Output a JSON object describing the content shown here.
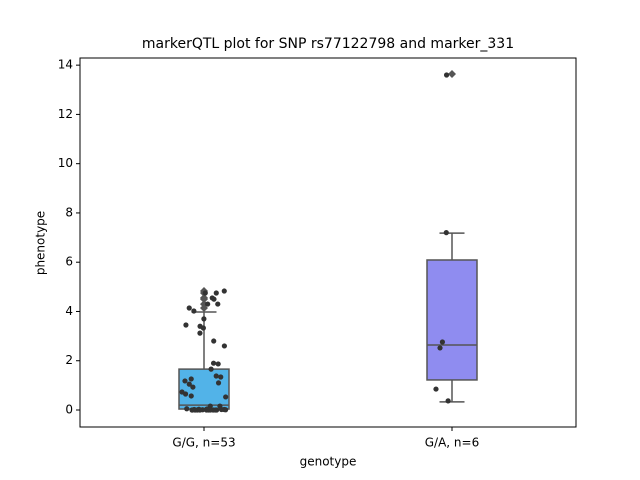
{
  "chart_data": {
    "type": "box",
    "title": "markerQTL plot for SNP rs77122798 and marker_331",
    "x_label": "genotype",
    "y_label": "phenotype",
    "categories": [
      "G/G, n=53",
      "G/A, n=6"
    ],
    "ylim": [
      -0.69,
      14.29
    ],
    "yticks": [
      0,
      2,
      4,
      6,
      8,
      10,
      12,
      14
    ],
    "boxes": [
      {
        "color": "#52b3e8",
        "q1": 0.04,
        "median": 0.2,
        "q3": 1.66,
        "whisker_low": 0,
        "whisker_high": 3.98,
        "fliers": [
          4.83,
          4.75,
          4.55,
          4.5,
          4.3,
          4.14
        ]
      },
      {
        "color": "#8f8cf0",
        "q1": 1.22,
        "median": 2.64,
        "q3": 6.09,
        "whisker_low": 0.33,
        "whisker_high": 7.18,
        "fliers": [
          13.64
        ]
      }
    ],
    "points": {
      "color": "#333333",
      "values": [
        [
          4.83,
          4.75,
          4.75,
          4.55,
          4.5,
          4.3,
          4.3,
          4.14,
          4.02,
          3.33,
          3.4,
          3.45,
          3.7,
          3.12,
          2.8,
          2.6,
          1.9,
          1.87,
          1.66,
          1.34,
          1.38,
          1.1,
          1.26,
          1.18,
          1.05,
          0.93,
          0.73,
          0.65,
          0.57,
          0.53,
          0.16,
          0.16,
          0,
          0,
          0,
          0.01,
          0.02,
          0,
          0.03,
          0,
          0.01,
          0,
          0.05,
          0,
          0.02,
          0,
          0,
          0.04,
          0,
          0.01,
          0.03,
          0,
          0.02
        ],
        [
          7.2,
          2.76,
          2.52,
          0.85,
          0.37,
          13.6
        ]
      ]
    }
  }
}
